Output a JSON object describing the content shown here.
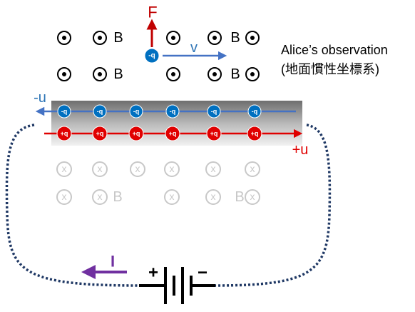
{
  "labels": {
    "force": "F",
    "velocity": "v",
    "moving_charge": "-q",
    "observer": "Alice’s observation",
    "frame": "(地面慣性坐標系)",
    "negative_flow": "-u",
    "positive_flow": "+u",
    "current": "I",
    "battery_plus": "+",
    "battery_minus": "−"
  },
  "top_field_labels": [
    "B",
    "B",
    "B",
    "B"
  ],
  "wire_negative_charges": [
    "-q",
    "-q",
    "-q",
    "-q",
    "-q",
    "-q"
  ],
  "wire_positive_charges": [
    "+q",
    "+q",
    "+q",
    "+q",
    "+q",
    "+q"
  ],
  "bottom_field_marks": [
    "x",
    "x",
    "x",
    "x",
    "x",
    "x",
    "x",
    "x",
    "x",
    "x",
    "x"
  ],
  "bottom_field_labels": [
    "B",
    "B"
  ]
}
